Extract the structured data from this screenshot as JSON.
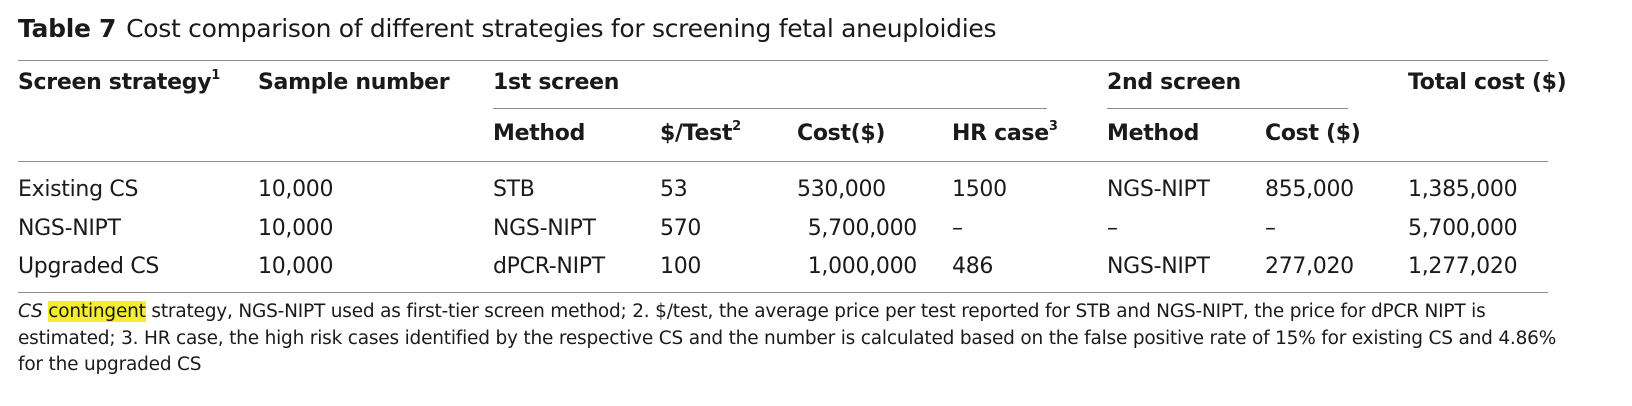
{
  "caption": {
    "label": "Table 7",
    "text": "Cost comparison of different strategies for screening fetal aneuploidies"
  },
  "headers": {
    "screen_strategy": "Screen strategy",
    "screen_strategy_sup": "1",
    "sample_number": "Sample number",
    "first_screen": "1st screen",
    "second_screen": "2nd screen",
    "total_cost": "Total cost ($)",
    "method_1": "Method",
    "per_test": "$/Test",
    "per_test_sup": "2",
    "cost_1": "Cost($)",
    "hr_case": "HR case",
    "hr_case_sup": "3",
    "method_2": "Method",
    "cost_2": "Cost ($)"
  },
  "rows": [
    {
      "strategy": "Existing CS",
      "samples": "10,000",
      "method1": "STB",
      "per_test": "53",
      "cost1": "530,000",
      "hr": "1500",
      "method2": "NGS-NIPT",
      "cost2": "855,000",
      "total": "1,385,000"
    },
    {
      "strategy": "NGS-NIPT",
      "samples": "10,000",
      "method1": "NGS-NIPT",
      "per_test": "570",
      "cost1": "5,700,000",
      "hr": "–",
      "method2": "–",
      "cost2": "–",
      "total": "5,700,000"
    },
    {
      "strategy": "Upgraded CS",
      "samples": "10,000",
      "method1": "dPCR-NIPT",
      "per_test": "100",
      "cost1": "1,000,000",
      "hr": "486",
      "method2": "NGS-NIPT",
      "cost2": "277,020",
      "total": "1,277,020"
    }
  ],
  "footnote": {
    "cs_abbrev": "CS",
    "highlight": "contingent",
    "rest": " strategy, NGS-NIPT used as first-tier screen method; 2. $/test, the average price per test reported for STB and NGS-NIPT, the price for dPCR NIPT is estimated; 3. HR case, the high risk cases identified by the respective CS and the number is calculated based on the false positive rate of 15% for existing CS and 4.86% for the upgraded CS",
    "highlight_color": "#f5ee30"
  }
}
